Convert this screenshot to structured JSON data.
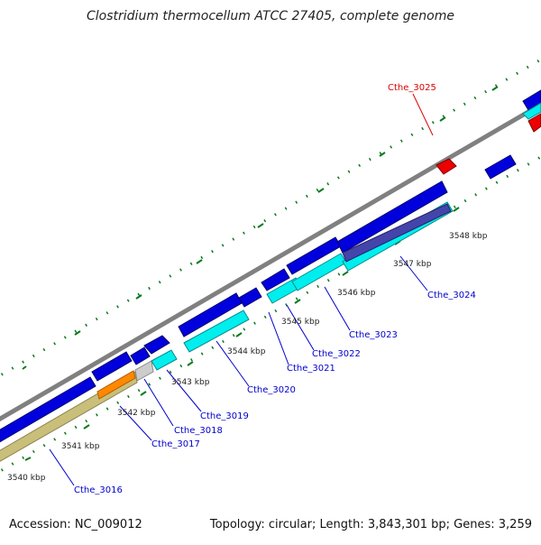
{
  "title": "Clostridium thermocellum ATCC 27405, complete genome",
  "footer": {
    "accession": "Accession: NC_009012",
    "summary": "Topology: circular; Length: 3,843,301 bp; Genes: 3,259"
  },
  "colors": {
    "backbone": "#808080",
    "forward_cds": "#0000dd",
    "reverse_cds": "#00eeee",
    "rna": "#c9bf7a",
    "orange": "#ff8800",
    "grey_feature": "#cccccc",
    "highlight": "#ee0000",
    "tick": "#0a7a1e",
    "ticklabel": "#222222",
    "genelabel": "#0000cc",
    "genelabel_red": "#dd0000"
  },
  "ticks": [
    {
      "label": "3540 kbp"
    },
    {
      "label": "3541 kbp"
    },
    {
      "label": "3542 kbp"
    },
    {
      "label": "3543 kbp"
    },
    {
      "label": "3544 kbp"
    },
    {
      "label": "3545 kbp"
    },
    {
      "label": "3546 kbp"
    },
    {
      "label": "3547 kbp"
    },
    {
      "label": "3548 kbp"
    }
  ],
  "gene_labels": [
    {
      "label": "Cthe_3016"
    },
    {
      "label": "Cthe_3017"
    },
    {
      "label": "Cthe_3018"
    },
    {
      "label": "Cthe_3019"
    },
    {
      "label": "Cthe_3020"
    },
    {
      "label": "Cthe_3021"
    },
    {
      "label": "Cthe_3022"
    },
    {
      "label": "Cthe_3023"
    },
    {
      "label": "Cthe_3024"
    },
    {
      "label": "Cthe_3025"
    }
  ]
}
